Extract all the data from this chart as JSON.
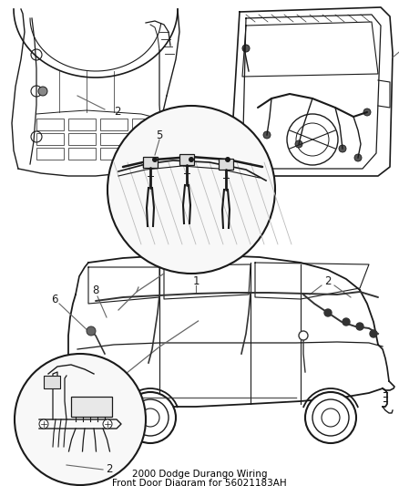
{
  "title_line1": "2000 Dodge Durango Wiring",
  "title_line2": "Front Door Diagram for 56021183AH",
  "title_fontsize": 7.5,
  "bg_color": "#ffffff",
  "fig_width": 4.38,
  "fig_height": 5.33,
  "dpi": 100,
  "lc": "#1a1a1a",
  "lc_light": "#666666",
  "lc_mid": "#333333",
  "label_fontsize": 8.5,
  "label_fontsize_small": 7.5
}
